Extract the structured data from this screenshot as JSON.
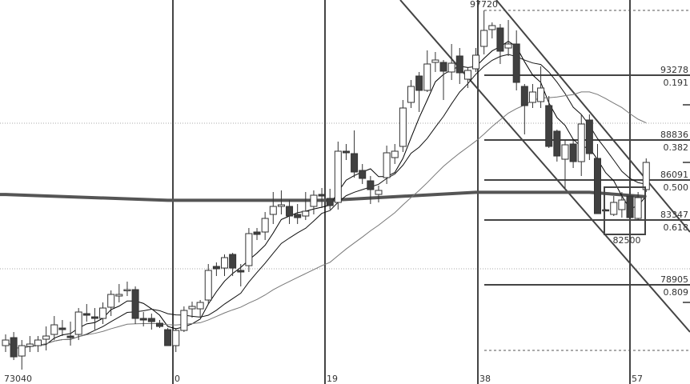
{
  "chart_data": {
    "type": "candlestick",
    "title": "",
    "colors": {
      "up_fill": "#ffffff",
      "down_fill": "#404040",
      "line": "#333333",
      "grid": "#bbbbbb"
    },
    "x_tick_labels": [
      "0",
      "19",
      "38",
      "57"
    ],
    "low_label": "73040",
    "high_label": "97720",
    "box_label": "82500",
    "candles": [
      [
        74735,
        75504,
        74297,
        75120
      ],
      [
        75284,
        75668,
        73748,
        73967
      ],
      [
        74022,
        75120,
        73090,
        74735
      ],
      [
        74681,
        75394,
        74297,
        74845
      ],
      [
        74735,
        75394,
        74297,
        75120
      ],
      [
        75174,
        76052,
        74406,
        75394
      ],
      [
        75504,
        76765,
        75120,
        76162
      ],
      [
        75942,
        76491,
        75394,
        75833
      ],
      [
        75394,
        76381,
        74735,
        75284
      ],
      [
        75504,
        77314,
        75120,
        77040
      ],
      [
        76930,
        77588,
        76381,
        76820
      ],
      [
        76710,
        77314,
        75833,
        76601
      ],
      [
        76601,
        77698,
        76217,
        77314
      ],
      [
        77369,
        78521,
        76765,
        78247
      ],
      [
        78137,
        78960,
        77698,
        78247
      ],
      [
        78521,
        79124,
        78137,
        78576
      ],
      [
        78576,
        78795,
        76217,
        76601
      ],
      [
        76601,
        77040,
        76052,
        76491
      ],
      [
        76601,
        76930,
        75833,
        76381
      ],
      [
        76272,
        76491,
        75942,
        76052
      ],
      [
        75833,
        75942,
        74735,
        74735
      ],
      [
        74735,
        75942,
        74297,
        75778
      ],
      [
        75778,
        77424,
        75668,
        77149
      ],
      [
        77259,
        77753,
        76656,
        77424
      ],
      [
        77259,
        77863,
        76656,
        77698
      ],
      [
        77863,
        80331,
        77588,
        79892
      ],
      [
        80167,
        80441,
        79508,
        80002
      ],
      [
        80057,
        80990,
        79508,
        80770
      ],
      [
        80990,
        81099,
        79508,
        80057
      ],
      [
        79892,
        80331,
        78795,
        79783
      ],
      [
        80221,
        82800,
        79783,
        82416
      ],
      [
        82526,
        82800,
        81977,
        82361
      ],
      [
        82526,
        83897,
        81977,
        83458
      ],
      [
        83733,
        85269,
        83074,
        84281
      ],
      [
        84281,
        85378,
        83733,
        84391
      ],
      [
        84281,
        84720,
        83074,
        83623
      ],
      [
        83733,
        84446,
        83074,
        83513
      ],
      [
        83623,
        85269,
        83349,
        83952
      ],
      [
        84281,
        85378,
        83733,
        85049
      ],
      [
        85104,
        85543,
        84171,
        84994
      ],
      [
        84830,
        85488,
        84062,
        84336
      ],
      [
        84555,
        88725,
        84062,
        88066
      ],
      [
        88066,
        88560,
        87463,
        87957
      ],
      [
        87902,
        89493,
        86256,
        86640
      ],
      [
        86750,
        87189,
        85817,
        86201
      ],
      [
        86037,
        86366,
        84446,
        85433
      ],
      [
        85104,
        85707,
        84555,
        85378
      ],
      [
        86256,
        88450,
        85817,
        87957
      ],
      [
        87628,
        88560,
        87189,
        88066
      ],
      [
        88396,
        91578,
        88012,
        91029
      ],
      [
        91413,
        92949,
        91029,
        92510
      ],
      [
        93223,
        93498,
        90755,
        92236
      ],
      [
        92236,
        94979,
        92126,
        94046
      ],
      [
        94156,
        94869,
        93498,
        94320
      ],
      [
        94156,
        94320,
        91578,
        93552
      ],
      [
        93498,
        95418,
        92949,
        94101
      ],
      [
        94595,
        95143,
        92675,
        93443
      ],
      [
        93004,
        93772,
        92400,
        93607
      ],
      [
        93717,
        95143,
        93498,
        94650
      ],
      [
        95253,
        97720,
        94705,
        96350
      ],
      [
        96405,
        96899,
        95802,
        96680
      ],
      [
        96515,
        96789,
        94046,
        94924
      ],
      [
        95143,
        97064,
        94595,
        95418
      ],
      [
        95418,
        96350,
        92236,
        92784
      ],
      [
        92510,
        92675,
        89219,
        91193
      ],
      [
        91413,
        92675,
        91029,
        92126
      ],
      [
        91468,
        93882,
        91029,
        92400
      ],
      [
        91193,
        91852,
        88286,
        88396
      ],
      [
        89438,
        89548,
        87353,
        87737
      ],
      [
        87518,
        88835,
        85543,
        88505
      ],
      [
        88560,
        88835,
        86914,
        87353
      ],
      [
        87353,
        90590,
        86366,
        89932
      ],
      [
        90206,
        90590,
        87463,
        87902
      ],
      [
        87573,
        88560,
        83787,
        83787
      ],
      [
        84050,
        84100,
        84000,
        84000
      ],
      [
        83733,
        84994,
        83623,
        84555
      ],
      [
        84062,
        85269,
        83513,
        84720
      ],
      [
        84994,
        85269,
        83513,
        83513
      ],
      [
        83458,
        85269,
        83349,
        84885
      ],
      [
        85433,
        87573,
        85269,
        87298
      ]
    ],
    "long_ma": [
      [
        0,
        85100
      ],
      [
        20,
        84700
      ],
      [
        40,
        84700
      ],
      [
        58,
        85250
      ],
      [
        72,
        85250
      ],
      [
        79,
        84950
      ]
    ],
    "fibonacci": [
      {
        "price": "93278",
        "ratio": "0.191"
      },
      {
        "price": "88836",
        "ratio": "0.382"
      },
      {
        "price": "86091",
        "ratio": "0.500"
      },
      {
        "price": "83347",
        "ratio": "0.618"
      },
      {
        "price": "78905",
        "ratio": "0.809"
      }
    ],
    "moving_averages": [
      5,
      10,
      25
    ],
    "grid": false,
    "legend": "none"
  }
}
